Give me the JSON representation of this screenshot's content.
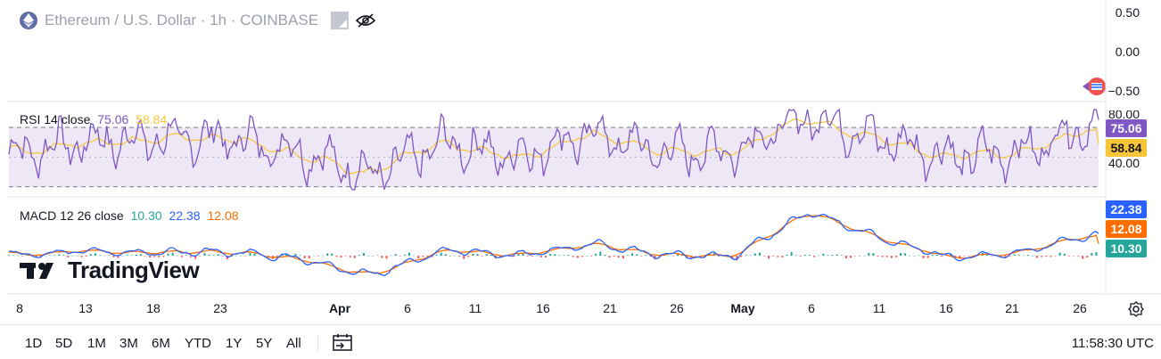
{
  "header": {
    "title": "Ethereum / U.S. Dollar · 1h · COINBASE",
    "icons": [
      "ethereum-logo-icon",
      "market-status-icon",
      "hide-eye-icon"
    ]
  },
  "colors": {
    "rsi": "#7e57c2",
    "rsi_ma": "#f7c638",
    "rsi_band": "#ede7f6",
    "macd": "#2962ff",
    "signal": "#ff6d00",
    "hist_pos": "#26a69a",
    "hist_neg": "#ef5350",
    "macd_hist_label": "#26a69a"
  },
  "price_pane": {
    "scale_labels": [
      "0.50",
      "0.00",
      "−0.50"
    ]
  },
  "rsi_pane": {
    "legend_name": "RSI 14 close",
    "value": "75.06",
    "ma_value": "58.84",
    "scale_labels": [
      "40.00"
    ],
    "partial_label": "80.00"
  },
  "macd_pane": {
    "legend_name": "MACD 12 26 close",
    "histogram_value": "10.30",
    "macd_value": "22.38",
    "signal_value": "12.08"
  },
  "brand": {
    "wordmark": "TradingView"
  },
  "x_axis": {
    "ticks": [
      "8",
      "13",
      "18",
      "23",
      "Apr",
      "6",
      "11",
      "16",
      "21",
      "26",
      "May",
      "6",
      "11",
      "16",
      "21",
      "26"
    ],
    "bold_ticks": [
      "Apr",
      "May"
    ]
  },
  "bottom_toolbar": {
    "ranges": [
      "1D",
      "5D",
      "1M",
      "3M",
      "6M",
      "YTD",
      "1Y",
      "5Y",
      "All"
    ],
    "time": "11:58:30 UTC"
  },
  "chart_data": [
    {
      "type": "line",
      "title": "RSI 14 close",
      "x": [
        "8",
        "13",
        "18",
        "23",
        "Apr",
        "6",
        "11",
        "16",
        "21",
        "26",
        "May",
        "6",
        "11",
        "16",
        "21",
        "26"
      ],
      "series": [
        {
          "name": "RSI",
          "values": [
            52,
            60,
            62,
            63,
            54,
            38,
            60,
            50,
            66,
            53,
            55,
            78,
            62,
            50,
            54,
            75.06
          ]
        },
        {
          "name": "RSI MA",
          "values": [
            52,
            56,
            59,
            60,
            55,
            45,
            55,
            52,
            60,
            55,
            55,
            66,
            60,
            52,
            53,
            58.84
          ]
        }
      ],
      "bands": [
        30,
        70
      ],
      "ylim": [
        25,
        85
      ],
      "grid": false
    },
    {
      "type": "line",
      "title": "MACD 12 26 close",
      "x": [
        "8",
        "13",
        "18",
        "23",
        "Apr",
        "6",
        "11",
        "16",
        "21",
        "26",
        "May",
        "6",
        "11",
        "16",
        "21",
        "26"
      ],
      "series": [
        {
          "name": "MACD",
          "values": [
            0,
            5,
            3,
            4,
            -2,
            -20,
            6,
            0,
            12,
            1,
            -1,
            45,
            18,
            -3,
            4,
            22.38
          ]
        },
        {
          "name": "Signal",
          "values": [
            0,
            3,
            3,
            3,
            0,
            -12,
            2,
            0,
            8,
            2,
            0,
            32,
            16,
            -1,
            3,
            12.08
          ]
        },
        {
          "name": "Histogram",
          "values": [
            0,
            2,
            0,
            1,
            -2,
            -8,
            4,
            0,
            4,
            -1,
            -1,
            13,
            2,
            -2,
            1,
            10.3
          ]
        }
      ],
      "ylim": [
        -35,
        55
      ],
      "grid": false
    }
  ]
}
